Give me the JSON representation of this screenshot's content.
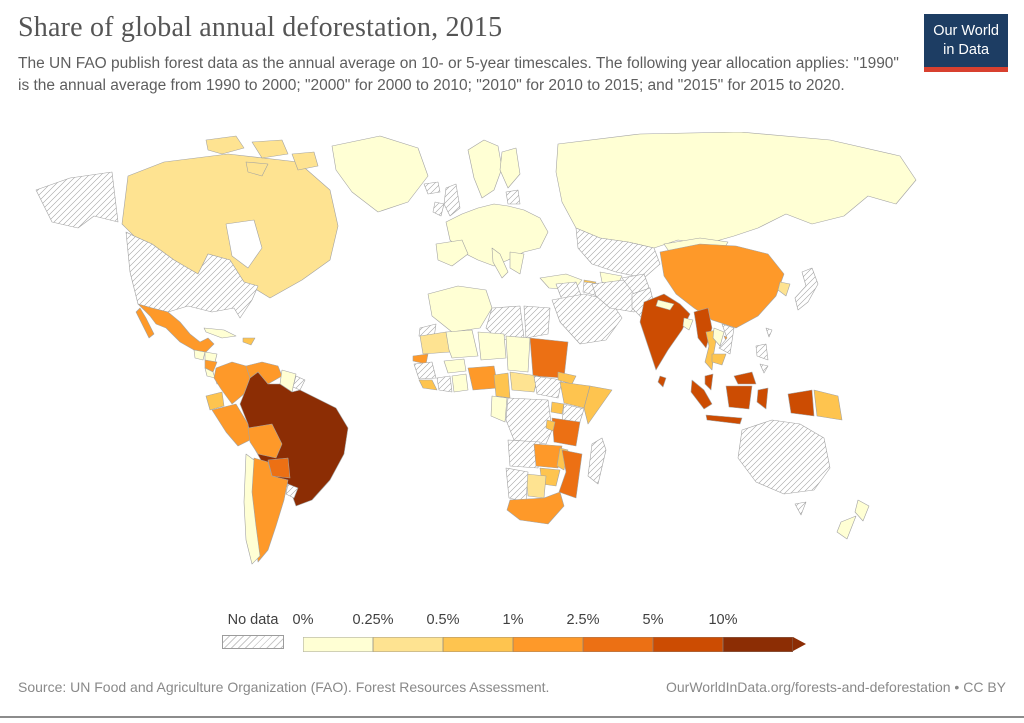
{
  "header": {
    "title": "Share of global annual deforestation, 2015",
    "subtitle": "The UN FAO publish forest data as the annual average on 10- or 5-year timescales. The following year allocation applies: \"1990\" is the annual average from 1990 to 2000; \"2000\" for 2000 to 2010; \"2010\" for 2010 to 2015; and \"2015\" for 2015 to 2020."
  },
  "logo": {
    "line1": "Our World",
    "line2": "in Data",
    "background": "#1d3d63",
    "accent_red": "#d8402f"
  },
  "footer": {
    "source": "Source: UN Food and Agriculture Organization (FAO). Forest Resources Assessment.",
    "link": "OurWorldInData.org/forests-and-deforestation • CC BY"
  },
  "chart_data": {
    "type": "choropleth",
    "title": "Share of global annual deforestation, 2015",
    "year": 2015,
    "unit": "% share of global annual deforestation",
    "legend": {
      "no_data_label": "No data",
      "bins": [
        {
          "label": "0%",
          "range": "0-0.25%",
          "color": "#ffffd4"
        },
        {
          "label": "0.25%",
          "range": "0.25-0.5%",
          "color": "#fee391"
        },
        {
          "label": "0.5%",
          "range": "0.5-1%",
          "color": "#fec44f"
        },
        {
          "label": "1%",
          "range": "1-2.5%",
          "color": "#fe9929"
        },
        {
          "label": "2.5%",
          "range": "2.5-5%",
          "color": "#ec7014"
        },
        {
          "label": "5%",
          "range": "5-10%",
          "color": "#cc4c02"
        },
        {
          "label": "10%",
          "range": ">10%",
          "color": "#8c2d04"
        }
      ]
    },
    "range_colors": {
      "0-0.25%": "#ffffd4",
      "0.25-0.5%": "#fee391",
      "0.5-1%": "#fec44f",
      "1-2.5%": "#fe9929",
      "2.5-5%": "#ec7014",
      "5-10%": "#cc4c02",
      ">10%": "#8c2d04",
      "no-data": "hatch"
    },
    "countries": {
      "united-states": "no-data",
      "canada": "0.25-0.5%",
      "greenland": "0-0.25%",
      "iceland": "no-data",
      "mexico": "1-2.5%",
      "guatemala": "0-0.25%",
      "honduras": "0-0.25%",
      "nicaragua": "1-2.5%",
      "costa-rica": "0-0.25%",
      "panama": "1-2.5%",
      "cuba": "0-0.25%",
      "hispaniola": "0.5-1%",
      "colombia": "1-2.5%",
      "venezuela": "1-2.5%",
      "guyana-suriname": "0-0.25%",
      "french-guiana": "no-data",
      "ecuador": "0.5-1%",
      "peru": "1-2.5%",
      "brazil": ">10%",
      "bolivia": "1-2.5%",
      "paraguay": "2.5-5%",
      "chile": "0-0.25%",
      "argentina": "1-2.5%",
      "uruguay": "no-data",
      "united-kingdom": "no-data",
      "ireland": "no-data",
      "scandinavia": "0-0.25%",
      "finland": "0-0.25%",
      "baltic-states": "no-data",
      "europe-mainland": "0-0.25%",
      "iberia": "0-0.25%",
      "italy": "0-0.25%",
      "balkans": "0-0.25%",
      "russia": "0-0.25%",
      "turkey": "0-0.25%",
      "azerbaijan": "0.5-1%",
      "kazakhstan": "no-data",
      "uzbekistan": "0-0.25%",
      "turkmenistan": "no-data",
      "iraq-syria": "no-data",
      "saudi-arabia": "no-data",
      "iran": "no-data",
      "afghanistan": "no-data",
      "pakistan": "no-data",
      "morocco-algeria": "0-0.25%",
      "libya": "no-data",
      "egypt": "no-data",
      "western-sahara": "no-data",
      "mauritania": "0.25-0.5%",
      "mali": "0-0.25%",
      "niger": "0-0.25%",
      "chad": "0-0.25%",
      "sudan": "2.5-5%",
      "senegal": "1-2.5%",
      "guinea": "no-data",
      "sierra-leone-liberia": "0.5-1%",
      "ivory-coast": "no-data",
      "ghana": "0-0.25%",
      "burkina-faso": "0-0.25%",
      "nigeria": "1-2.5%",
      "cameroon": "0.5-1%",
      "central-african-republic": "0.25-0.5%",
      "south-sudan": "no-data",
      "eritrea": "0.5-1%",
      "ethiopia": "0.5-1%",
      "somalia": "0.5-1%",
      "uganda": "0.5-1%",
      "kenya": "no-data",
      "dr-congo": "no-data",
      "gabon-congo": "0-0.25%",
      "tanzania": "2.5-5%",
      "rwanda-burundi": "0.5-1%",
      "angola": "no-data",
      "zambia": "1-2.5%",
      "malawi": "0.5-1%",
      "mozambique": "2.5-5%",
      "zimbabwe": "0.5-1%",
      "botswana": "0.25-0.5%",
      "namibia": "no-data",
      "south-africa": "1-2.5%",
      "madagascar": "no-data",
      "china": "1-2.5%",
      "mongolia": "0-0.25%",
      "south-korea": "0.25-0.5%",
      "japan": "no-data",
      "india": "5-10%",
      "nepal": "0-0.25%",
      "bangladesh": "0-0.25%",
      "sri-lanka": "5-10%",
      "myanmar": "5-10%",
      "thailand": "0.5-1%",
      "laos": "0-0.25%",
      "vietnam": "no-data",
      "cambodia": "0.5-1%",
      "malaysia": "5-10%",
      "indonesia": "5-10%",
      "philippines": "no-data",
      "taiwan": "no-data",
      "papua-new-guinea": "0.5-1%",
      "australia": "no-data",
      "new-zealand": "0-0.25%"
    }
  }
}
